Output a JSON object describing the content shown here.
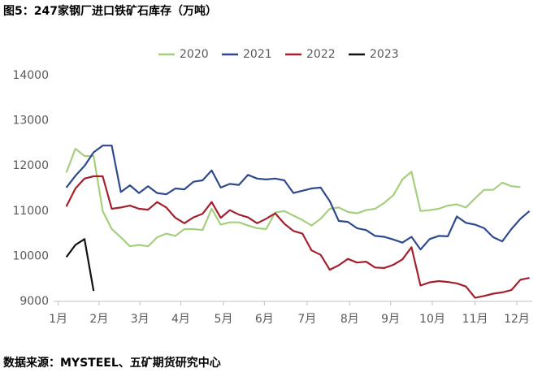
{
  "chart_data": {
    "type": "line",
    "title": "图5：247家钢厂进口铁矿石库存（万吨）",
    "source": "数据来源：MYSTEEL、五矿期货研究中心",
    "x": [
      1,
      2,
      3,
      4,
      5,
      6,
      7,
      8,
      9,
      10,
      11,
      12,
      13,
      14,
      15,
      16,
      17,
      18,
      19,
      20,
      21,
      22,
      23,
      24,
      25,
      26,
      27,
      28,
      29,
      30,
      31,
      32,
      33,
      34,
      35,
      36,
      37,
      38,
      39,
      40,
      41,
      42,
      43,
      44,
      45,
      46,
      47,
      48,
      49,
      50,
      51,
      52
    ],
    "xlim": [
      -0.4,
      52.3
    ],
    "xticks": [
      {
        "value": 0.1,
        "label": "1月"
      },
      {
        "value": 4.6,
        "label": "2月"
      },
      {
        "value": 9.1,
        "label": "3月"
      },
      {
        "value": 13.6,
        "label": "4月"
      },
      {
        "value": 18.3,
        "label": "5月"
      },
      {
        "value": 22.8,
        "label": "6月"
      },
      {
        "value": 27.5,
        "label": "7月"
      },
      {
        "value": 32.2,
        "label": "8月"
      },
      {
        "value": 36.7,
        "label": "9月"
      },
      {
        "value": 41.3,
        "label": "10月"
      },
      {
        "value": 46,
        "label": "11月"
      },
      {
        "value": 50.6,
        "label": "12月"
      }
    ],
    "ylim": [
      9000,
      14000
    ],
    "yticks": [
      9000,
      10000,
      11000,
      12000,
      13000,
      14000
    ],
    "grid": false,
    "legend": "top",
    "series": [
      {
        "name": "2020",
        "color": "#a5cf7e",
        "values": [
          11850,
          12380,
          12220,
          12220,
          11000,
          10600,
          10420,
          10220,
          10250,
          10220,
          10420,
          10500,
          10450,
          10600,
          10600,
          10580,
          11050,
          10700,
          10750,
          10750,
          10680,
          10620,
          10600,
          10970,
          11000,
          10900,
          10800,
          10680,
          10830,
          11050,
          11080,
          10980,
          10950,
          11020,
          11050,
          11180,
          11350,
          11700,
          11870,
          11000,
          11020,
          11050,
          11120,
          11150,
          11080,
          11280,
          11470,
          11470,
          11630,
          11550,
          11530,
          null
        ]
      },
      {
        "name": "2021",
        "color": "#2e4a8f",
        "values": [
          11520,
          11780,
          12000,
          12300,
          12450,
          12450,
          11420,
          11570,
          11400,
          11550,
          11400,
          11370,
          11500,
          11480,
          11650,
          11680,
          11900,
          11520,
          11600,
          11580,
          11800,
          11720,
          11700,
          11720,
          11680,
          11400,
          11450,
          11500,
          11520,
          11220,
          10780,
          10760,
          10620,
          10580,
          10450,
          10430,
          10370,
          10300,
          10430,
          10150,
          10380,
          10450,
          10440,
          10880,
          10740,
          10700,
          10620,
          10420,
          10330,
          10600,
          10830,
          11000
        ]
      },
      {
        "name": "2022",
        "color": "#a3202e",
        "values": [
          11100,
          11500,
          11720,
          11770,
          11770,
          11050,
          11080,
          11120,
          11050,
          11030,
          11200,
          11080,
          10850,
          10730,
          10860,
          10940,
          11200,
          10850,
          11020,
          10920,
          10860,
          10730,
          10830,
          10950,
          10720,
          10560,
          10500,
          10130,
          10030,
          9700,
          9800,
          9940,
          9860,
          9880,
          9750,
          9740,
          9810,
          9930,
          10200,
          9350,
          9420,
          9450,
          9430,
          9400,
          9330,
          9080,
          9120,
          9170,
          9200,
          9250,
          9480,
          9520
        ]
      },
      {
        "name": "2023",
        "color": "#111111",
        "values": [
          9980,
          10250,
          10380,
          9230,
          null,
          null,
          null,
          null,
          null,
          null,
          null,
          null,
          null,
          null,
          null,
          null,
          null,
          null,
          null,
          null,
          null,
          null,
          null,
          null,
          null,
          null,
          null,
          null,
          null,
          null,
          null,
          null,
          null,
          null,
          null,
          null,
          null,
          null,
          null,
          null,
          null,
          null,
          null,
          null,
          null,
          null,
          null,
          null,
          null,
          null,
          null,
          null
        ]
      }
    ]
  }
}
